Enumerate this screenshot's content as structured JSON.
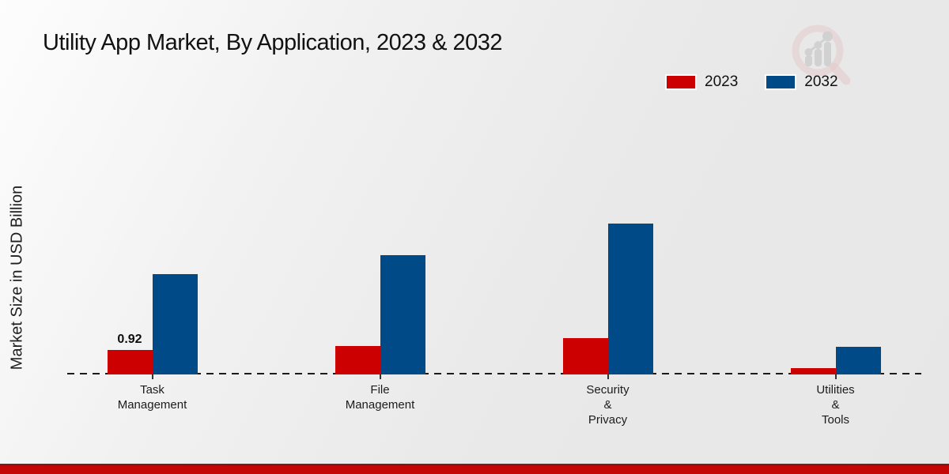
{
  "title": "Utility App Market, By Application, 2023 & 2032",
  "y_axis_label": "Market Size in USD Billion",
  "logo": {
    "name": "market-research-magnifier-logo",
    "ring_color": "#dfb0b0",
    "bars_color": "#bfbfbf"
  },
  "footer": {
    "band_color": "#c40606"
  },
  "chart_data": {
    "type": "bar",
    "title": "Utility App Market, By Application, 2023 & 2032",
    "xlabel": "",
    "ylabel": "Market Size in USD Billion",
    "categories": [
      "Task Management",
      "File Management",
      "Security & Privacy",
      "Utilities & Tools"
    ],
    "category_label_lines": [
      [
        "Task",
        "Management"
      ],
      [
        "File",
        "Management"
      ],
      [
        "Security",
        "&",
        "Privacy"
      ],
      [
        "Utilities",
        "&",
        "Tools"
      ]
    ],
    "series": [
      {
        "name": "2023",
        "color": "#cc0000",
        "values": [
          0.92,
          1.07,
          1.38,
          0.25
        ]
      },
      {
        "name": "2032",
        "color": "#004a87",
        "values": [
          3.8,
          4.53,
          5.74,
          1.05
        ]
      }
    ],
    "annotations": [
      {
        "series": 0,
        "category": 0,
        "text": "0.92"
      }
    ],
    "ylim": [
      0,
      6
    ],
    "grid": false,
    "y_axis_ticks_visible": false,
    "baseline_style": "dashed",
    "legend_position": "top-right"
  }
}
